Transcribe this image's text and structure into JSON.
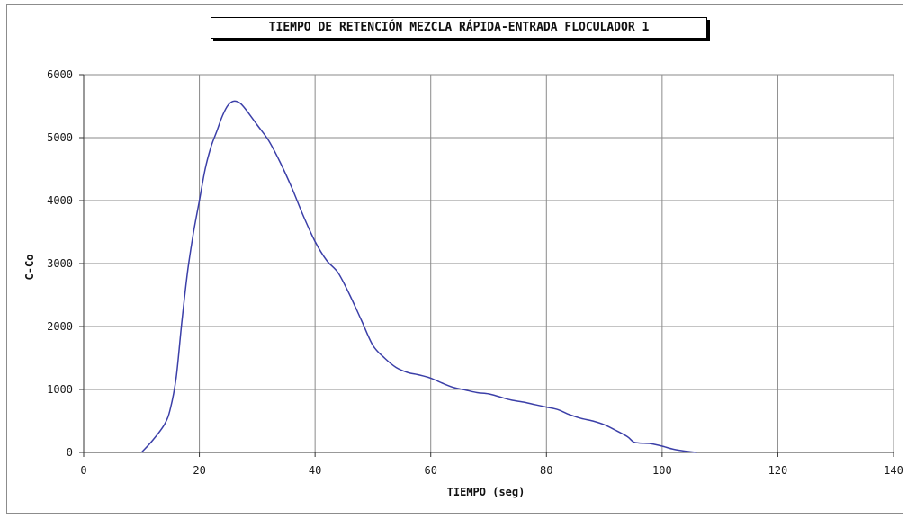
{
  "chart_data": {
    "type": "line",
    "title": "TIEMPO DE RETENCIÓN MEZCLA RÁPIDA-ENTRADA FLOCULADOR 1",
    "xlabel": "TIEMPO (seg)",
    "ylabel": "C-Co",
    "xlim": [
      0,
      140
    ],
    "ylim": [
      0,
      6000
    ],
    "x_ticks": [
      0,
      20,
      40,
      60,
      80,
      100,
      120,
      140
    ],
    "y_ticks": [
      0,
      1000,
      2000,
      3000,
      4000,
      5000,
      6000
    ],
    "grid": "both",
    "legend": "none",
    "series": [
      {
        "color": "#3b3fa8",
        "x": [
          10,
          12,
          14,
          15,
          16,
          17,
          18,
          19,
          20,
          21,
          22,
          23,
          24,
          25,
          26,
          27,
          28,
          30,
          32,
          34,
          36,
          38,
          40,
          42,
          44,
          46,
          48,
          50,
          52,
          54,
          56,
          58,
          60,
          62,
          64,
          66,
          68,
          70,
          72,
          74,
          76,
          78,
          80,
          82,
          84,
          86,
          88,
          90,
          92,
          94,
          95,
          96,
          98,
          100,
          102,
          104,
          106
        ],
        "y": [
          0,
          200,
          450,
          700,
          1200,
          2100,
          2900,
          3500,
          4000,
          4500,
          4850,
          5100,
          5350,
          5520,
          5580,
          5550,
          5450,
          5200,
          4950,
          4600,
          4200,
          3750,
          3350,
          3050,
          2850,
          2500,
          2100,
          1700,
          1500,
          1350,
          1270,
          1230,
          1180,
          1100,
          1030,
          990,
          950,
          930,
          880,
          830,
          800,
          760,
          720,
          680,
          600,
          540,
          500,
          440,
          350,
          250,
          170,
          150,
          140,
          100,
          50,
          20,
          0
        ]
      }
    ]
  }
}
